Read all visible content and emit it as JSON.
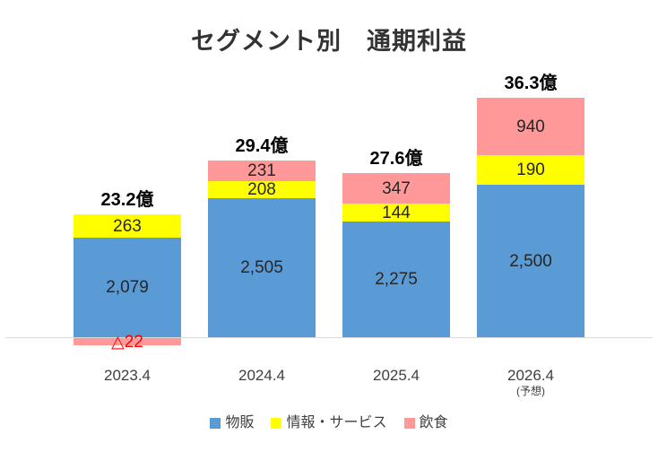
{
  "page": {
    "background": "#FFFFFF"
  },
  "colors": {
    "axis_line": "#D9D9D9",
    "title_text": "#333333",
    "value_text": "#262626",
    "total_text": "#000000",
    "category_text": "#404040",
    "legend_text": "#404040",
    "negative_text": "#FF0000"
  },
  "chart_data": {
    "type": "bar",
    "stacked": true,
    "title": "セグメント別　通期利益",
    "categories": [
      "2023.4",
      "2024.4",
      "2025.4",
      "2026.4"
    ],
    "category_notes": [
      "",
      "",
      "",
      "(予想)"
    ],
    "totals": {
      "display": [
        "23.2億",
        "29.4億",
        "27.6億",
        "36.3億"
      ],
      "values_oku": [
        23.2,
        29.4,
        27.6,
        36.3
      ]
    },
    "series": [
      {
        "key": "merchandise",
        "name": "物販",
        "color": "#5B9BD5",
        "values": [
          2079,
          2505,
          2275,
          2500
        ],
        "display": [
          "2,079",
          "2,505",
          "2,275",
          "2,500"
        ]
      },
      {
        "key": "info-services",
        "name": "情報・サービス",
        "color": "#FFFF00",
        "values": [
          263,
          208,
          144,
          190
        ],
        "display": [
          "263",
          "208",
          "144",
          "190"
        ]
      },
      {
        "key": "food-beverage",
        "name": "飲食",
        "color": "#FF9999",
        "values": [
          -22,
          231,
          347,
          940
        ],
        "display": [
          "△22",
          "231",
          "347",
          "940"
        ]
      }
    ],
    "legend_position": "bottom",
    "grid": false,
    "axis": {
      "zero_line": true
    }
  }
}
